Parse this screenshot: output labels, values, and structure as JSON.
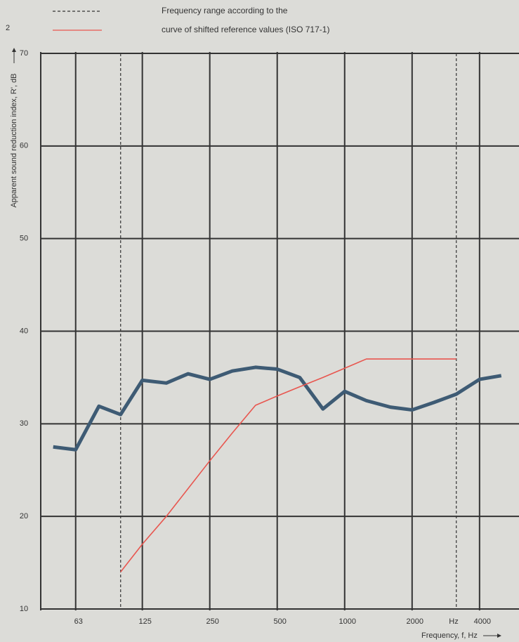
{
  "chart_data": {
    "type": "line",
    "corner_mark": "2",
    "x": [
      50,
      63,
      80,
      100,
      125,
      160,
      200,
      250,
      315,
      400,
      500,
      630,
      800,
      1000,
      1250,
      1600,
      2000,
      2500,
      3150,
      4000,
      5000
    ],
    "series": [
      {
        "color": "#3e5b74",
        "values": [
          27.5,
          27.2,
          31.9,
          31.0,
          34.7,
          34.4,
          35.4,
          34.8,
          35.7,
          36.1,
          35.9,
          35.0,
          31.6,
          33.5,
          32.5,
          31.8,
          31.5,
          32.3,
          33.2,
          34.8,
          35.2
        ]
      },
      {
        "name": "curve of shifted reference values (ISO 717-1)",
        "color": "#e8564f",
        "values": [
          null,
          null,
          null,
          14,
          17,
          20,
          23,
          26,
          29,
          32,
          33,
          34,
          35,
          36,
          37,
          37,
          37,
          37,
          37,
          null,
          null
        ]
      }
    ],
    "frequency_range": {
      "label": "Frequency range according to the",
      "values": [
        100,
        3150
      ]
    },
    "xlabel": "Frequency, f, Hz",
    "x_unit": "Hz",
    "ylabel": "Apparent sound reduction index, R', dB",
    "xscale": "log",
    "xlim": [
      44,
      6000
    ],
    "xticks": [
      63,
      125,
      250,
      500,
      1000,
      2000,
      4000
    ],
    "ylim": [
      10,
      70
    ],
    "yticks": [
      10,
      20,
      30,
      40,
      50,
      60,
      70
    ],
    "grid": true
  }
}
